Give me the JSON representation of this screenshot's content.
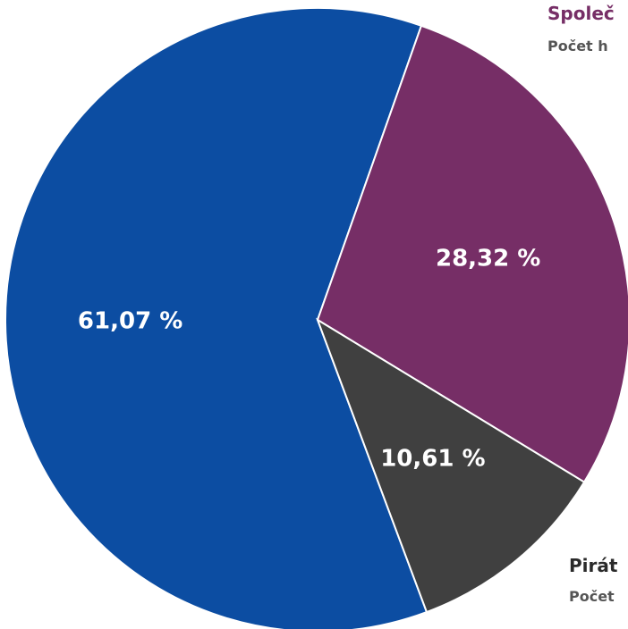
{
  "chart_data": {
    "type": "pie",
    "categories": [
      "",
      "",
      ""
    ],
    "values": [
      61.07,
      28.32,
      10.61
    ],
    "value_labels": [
      "61,07 %",
      "28,32 %",
      "10,61 %"
    ],
    "colors": [
      "#0c4da2",
      "#762e66",
      "#404040"
    ],
    "callouts": [
      {
        "title": "Společ",
        "subtitle": "Počet h",
        "color": "#762e66"
      },
      {
        "title": "Pirát",
        "subtitle": "Počet",
        "color": "#2a2a2a"
      }
    ],
    "start_angle_deg": 19.4,
    "legend": "none"
  }
}
